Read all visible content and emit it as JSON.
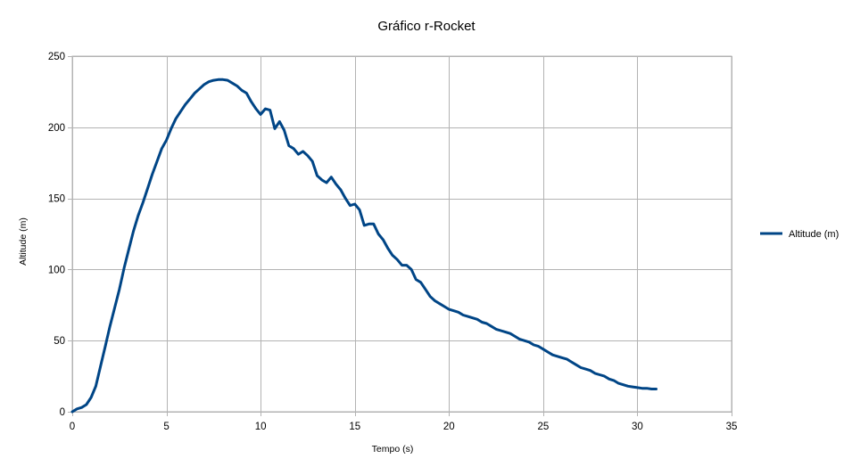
{
  "chart_data": {
    "type": "line",
    "title": "Gráfico r-Rocket",
    "xlabel": "Tempo (s)",
    "ylabel": "Altitude (m)",
    "xlim": [
      0,
      35
    ],
    "ylim": [
      0,
      250
    ],
    "x_ticks": [
      0,
      5,
      10,
      15,
      20,
      25,
      30,
      35
    ],
    "y_ticks": [
      0,
      50,
      100,
      150,
      200,
      250
    ],
    "grid": true,
    "legend_position": "right",
    "series": [
      {
        "name": "Altitude (m)",
        "color": "#004586",
        "x": [
          0,
          0.25,
          0.5,
          0.75,
          1.0,
          1.25,
          1.5,
          1.75,
          2.0,
          2.25,
          2.5,
          2.75,
          3.0,
          3.25,
          3.5,
          3.75,
          4.0,
          4.25,
          4.5,
          4.75,
          5.0,
          5.25,
          5.5,
          5.75,
          6.0,
          6.25,
          6.5,
          6.75,
          7.0,
          7.25,
          7.5,
          7.75,
          8.0,
          8.25,
          8.5,
          8.75,
          9.0,
          9.25,
          9.5,
          9.75,
          10.0,
          10.25,
          10.5,
          10.75,
          11.0,
          11.25,
          11.5,
          11.75,
          12.0,
          12.25,
          12.5,
          12.75,
          13.0,
          13.25,
          13.5,
          13.75,
          14.0,
          14.25,
          14.5,
          14.75,
          15.0,
          15.25,
          15.5,
          15.75,
          16.0,
          16.25,
          16.5,
          16.75,
          17.0,
          17.25,
          17.5,
          17.75,
          18.0,
          18.25,
          18.5,
          18.75,
          19.0,
          19.25,
          19.5,
          19.75,
          20.0,
          20.25,
          20.5,
          20.75,
          21.0,
          21.25,
          21.5,
          21.75,
          22.0,
          22.25,
          22.5,
          22.75,
          23.0,
          23.25,
          23.5,
          23.75,
          24.0,
          24.25,
          24.5,
          24.75,
          25.0,
          25.25,
          25.5,
          25.75,
          26.0,
          26.25,
          26.5,
          26.75,
          27.0,
          27.25,
          27.5,
          27.75,
          28.0,
          28.25,
          28.5,
          28.75,
          29.0,
          29.25,
          29.5,
          29.75,
          30.0,
          30.25,
          30.5,
          30.75,
          31.0
        ],
        "y": [
          0,
          2,
          3,
          5,
          10,
          18,
          32,
          46,
          60,
          73,
          86,
          101,
          114,
          127,
          138,
          147,
          157,
          167,
          176,
          185,
          191,
          199,
          206,
          211,
          216,
          220,
          224,
          227,
          230,
          232,
          233,
          233.5,
          233.5,
          233,
          231,
          229,
          226,
          224,
          218,
          213,
          209,
          213,
          212,
          199,
          204,
          198,
          187,
          185,
          181,
          183,
          180,
          176,
          166,
          163,
          161,
          165,
          160,
          156,
          150,
          145,
          146,
          142,
          131,
          132,
          132,
          125,
          121,
          115,
          110,
          107,
          103,
          103,
          100,
          93,
          91,
          86,
          81,
          78,
          76,
          74,
          72,
          71,
          70,
          68,
          67,
          66,
          65,
          63,
          62,
          60,
          58,
          57,
          56,
          55,
          53,
          51,
          50,
          49,
          47,
          46,
          44,
          42,
          40,
          39,
          38,
          37,
          35,
          33,
          31,
          30,
          29,
          27,
          26,
          25,
          23,
          22,
          20,
          19,
          18,
          17.5,
          17,
          16.5,
          16.5,
          16,
          16
        ]
      }
    ]
  }
}
